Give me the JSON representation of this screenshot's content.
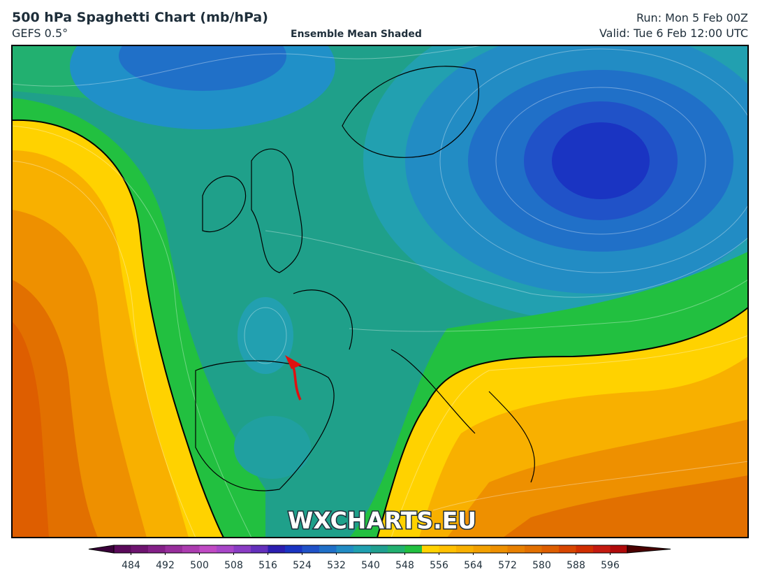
{
  "header": {
    "title": "500 hPa Spaghetti Chart (mb/hPa)",
    "model": "GEFS 0.5°",
    "subtitle": "Ensemble Mean Shaded",
    "run": "Run: Mon 5 Feb 00Z",
    "valid": "Valid: Tue 6 Feb 12:00 UTC"
  },
  "map": {
    "watermark": "WXCHARTS.EU"
  },
  "colorbar": {
    "range": [
      480,
      600
    ],
    "ticks": [
      484,
      492,
      500,
      508,
      516,
      524,
      532,
      540,
      548,
      556,
      564,
      572,
      580,
      588,
      596
    ],
    "colors": [
      "#5a0a5a",
      "#6e1470",
      "#842088",
      "#982e9c",
      "#ac3cb0",
      "#c04ac4",
      "#a846c8",
      "#8a3cc4",
      "#6430bc",
      "#2c1eb0",
      "#1a34c2",
      "#2052c8",
      "#2070c8",
      "#228cc4",
      "#20a0b0",
      "#20a090",
      "#22b070",
      "#22c040",
      "#ffd200",
      "#ffc000",
      "#f8b000",
      "#f2a000",
      "#ee9000",
      "#e88000",
      "#e27000",
      "#de5e00",
      "#d84600",
      "#d02e00",
      "#c41a10",
      "#b00a0a"
    ],
    "under_color": "#3a003a",
    "over_color": "#4a0000"
  }
}
